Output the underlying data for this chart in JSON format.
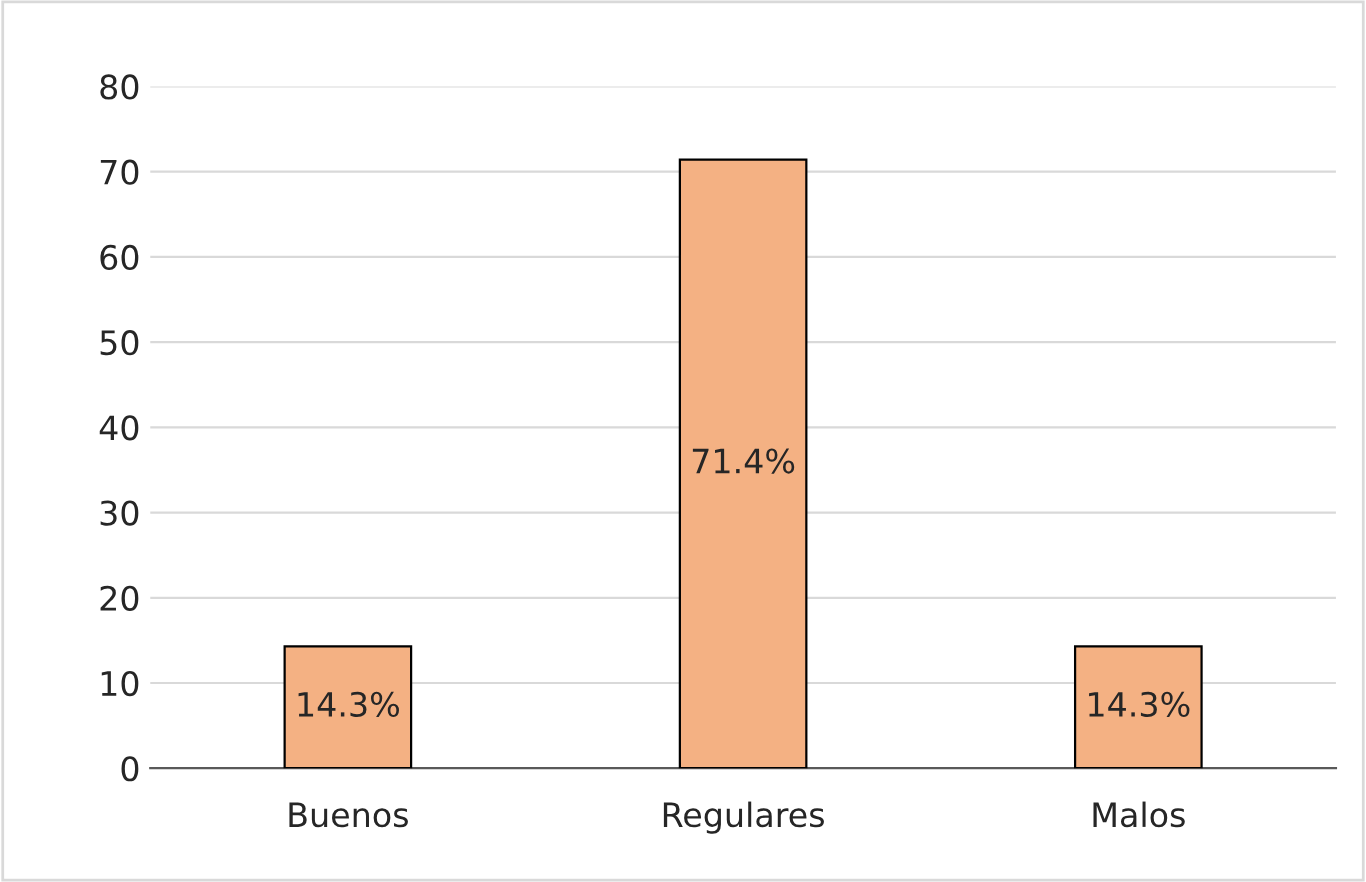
{
  "chart_data": {
    "type": "bar",
    "categories": [
      "Buenos",
      "Regulares",
      "Malos"
    ],
    "values": [
      14.3,
      71.4,
      14.3
    ],
    "value_labels": [
      "14.3%",
      "71.4%",
      "14.3%"
    ],
    "color": "#f4b183",
    "ylim": [
      0,
      80
    ],
    "yticks": [
      0,
      10,
      20,
      30,
      40,
      50,
      60,
      70,
      80
    ],
    "grid": "y"
  }
}
